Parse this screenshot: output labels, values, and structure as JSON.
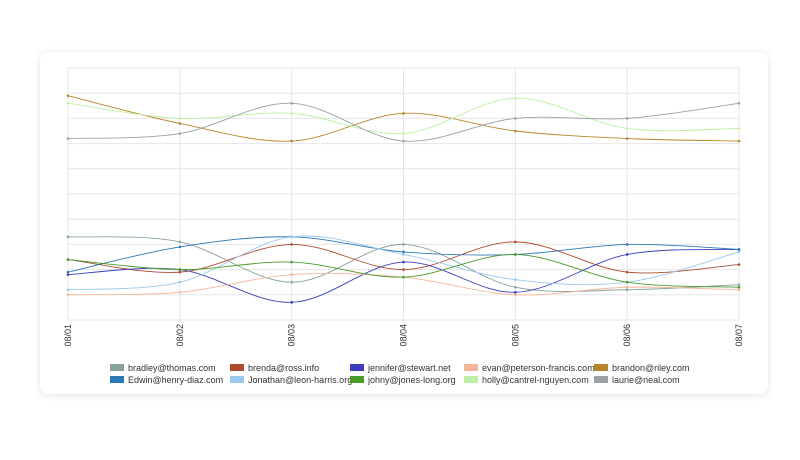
{
  "chart_data": {
    "type": "line",
    "x": [
      "08/01",
      "08/02",
      "08/03",
      "08/04",
      "08/05",
      "08/06",
      "08/07"
    ],
    "ylim": [
      0,
      100
    ],
    "grid": true,
    "legend_position": "bottom",
    "series": [
      {
        "name": "bradley@thomas.com",
        "color": "#8aa39b",
        "values": [
          33,
          31,
          15,
          30,
          13,
          12,
          14
        ]
      },
      {
        "name": "brenda@ross.info",
        "color": "#b04a2e",
        "values": [
          24,
          19,
          30,
          20,
          31,
          19,
          22
        ]
      },
      {
        "name": "jennifer@stewart.net",
        "color": "#3b3dbd",
        "values": [
          18,
          20,
          7,
          23,
          11,
          26,
          28
        ]
      },
      {
        "name": "evan@peterson-francis.com",
        "color": "#f4b69a",
        "values": [
          10,
          11,
          18,
          17,
          10,
          13,
          12
        ]
      },
      {
        "name": "brandon@riley.com",
        "color": "#b8862a",
        "values": [
          89,
          78,
          71,
          82,
          75,
          72,
          71
        ]
      },
      {
        "name": "Edwin@henry-diaz.com",
        "color": "#2b78b8",
        "values": [
          19,
          29,
          33,
          27,
          26,
          30,
          28
        ]
      },
      {
        "name": "Jonathan@leon-harris.org",
        "color": "#9cc9ef",
        "values": [
          12,
          15,
          33,
          26,
          16,
          15,
          27
        ]
      },
      {
        "name": "johny@jones-long.org",
        "color": "#4a9a2a",
        "values": [
          24,
          20,
          23,
          17,
          26,
          15,
          13
        ]
      },
      {
        "name": "holly@cantrel-nguyen.com",
        "color": "#bdf0a6",
        "values": [
          86,
          80,
          82,
          74,
          88,
          76,
          76
        ]
      },
      {
        "name": "laurie@neal.com",
        "color": "#9aa0a6",
        "values": [
          72,
          74,
          86,
          71,
          80,
          80,
          86
        ]
      }
    ]
  }
}
